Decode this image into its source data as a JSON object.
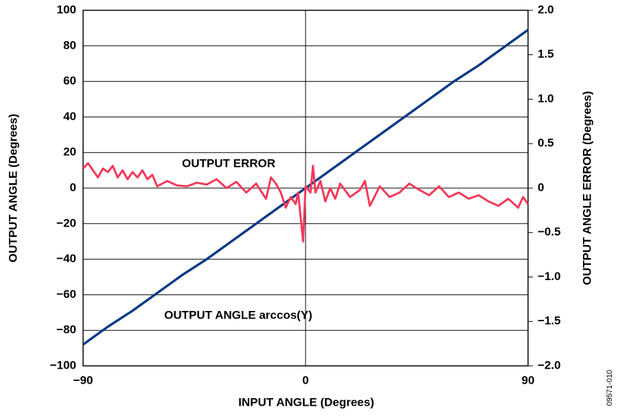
{
  "chart_data": {
    "type": "line",
    "xlabel": "INPUT ANGLE (Degrees)",
    "ylabel": "OUTPUT ANGLE (Degrees)",
    "y2label": "OUTPUT ANGLE ERROR (Degrees)",
    "annotations": [
      "OUTPUT ERROR",
      "OUTPUT ANGLE arccos(Y)"
    ],
    "figure_id": "09571-010",
    "xlim": [
      -90,
      90
    ],
    "xticks": [
      {
        "value": -90,
        "label": "−90"
      },
      0,
      90
    ],
    "ylim": [
      -100,
      100
    ],
    "yticks": [
      {
        "value": -100,
        "label": "−100"
      },
      {
        "value": -80,
        "label": "−80"
      },
      {
        "value": -60,
        "label": "−60"
      },
      {
        "value": -40,
        "label": "−40"
      },
      {
        "value": -20,
        "label": "−20"
      },
      0,
      20,
      40,
      60,
      80,
      100
    ],
    "y2lim": [
      -2,
      2
    ],
    "y2ticks": [
      {
        "value": -2,
        "label": "−2.0"
      },
      {
        "value": -1.5,
        "label": "−1.5"
      },
      {
        "value": -1,
        "label": "−1.0"
      },
      {
        "value": -0.5,
        "label": "−0.5"
      },
      0,
      0.5,
      {
        "value": 1,
        "label": "1.0"
      },
      1.5,
      {
        "value": 2,
        "label": "2.0"
      }
    ],
    "grid": true,
    "series": [
      {
        "color": "#0b3a86",
        "x": [
          -90,
          -80,
          -70,
          -60,
          -50,
          -40,
          -30,
          -20,
          -10,
          0,
          10,
          20,
          30,
          40,
          50,
          60,
          70,
          80,
          90
        ],
        "values": [
          -88,
          -78,
          -69,
          -59,
          -49,
          -40,
          -30,
          -20,
          -10,
          0,
          10,
          20,
          30,
          40,
          50,
          60,
          69,
          79,
          89
        ]
      },
      {
        "color": "#f2395a",
        "axis": "y2",
        "x": [
          -90,
          -88,
          -86,
          -84,
          -82,
          -80,
          -78,
          -76,
          -74,
          -72,
          -70,
          -68,
          -66,
          -64,
          -62,
          -60,
          -56,
          -52,
          -48,
          -44,
          -40,
          -36,
          -32,
          -28,
          -24,
          -20,
          -16,
          -14,
          -12,
          -10,
          -8,
          -6,
          -4,
          -3,
          -1,
          0,
          2,
          3,
          4,
          6,
          8,
          10,
          12,
          14,
          18,
          22,
          24,
          26,
          30,
          34,
          38,
          42,
          46,
          50,
          54,
          58,
          62,
          66,
          70,
          74,
          78,
          82,
          86,
          88,
          90
        ],
        "values": [
          0.22,
          0.28,
          0.2,
          0.12,
          0.22,
          0.18,
          0.25,
          0.12,
          0.2,
          0.1,
          0.18,
          0.12,
          0.2,
          0.1,
          0.15,
          0.02,
          0.08,
          0.03,
          0.02,
          0.06,
          0.04,
          0.1,
          0.0,
          0.07,
          -0.05,
          0.05,
          -0.12,
          0.12,
          0.05,
          -0.05,
          -0.22,
          -0.1,
          -0.18,
          -0.05,
          -0.6,
          0.02,
          -0.05,
          0.25,
          -0.05,
          0.08,
          -0.15,
          0.0,
          -0.12,
          0.05,
          -0.1,
          -0.02,
          0.08,
          -0.2,
          0.02,
          -0.1,
          -0.05,
          0.05,
          -0.02,
          -0.08,
          0.02,
          -0.1,
          -0.05,
          -0.12,
          -0.08,
          -0.15,
          -0.2,
          -0.12,
          -0.22,
          -0.1,
          -0.18
        ]
      }
    ]
  }
}
